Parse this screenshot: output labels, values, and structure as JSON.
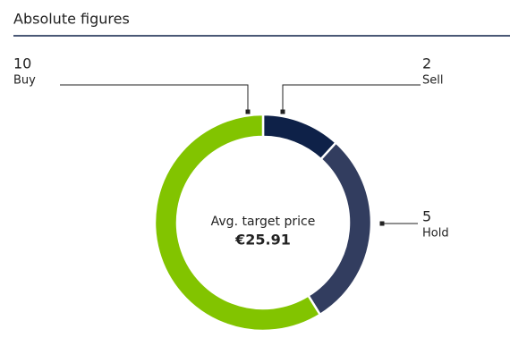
{
  "chart_data": {
    "type": "donut",
    "title": "Absolute figures",
    "categories": [
      "Sell",
      "Hold",
      "Buy"
    ],
    "values": [
      2,
      5,
      10
    ],
    "colors": [
      "#0e2148",
      "#323d5f",
      "#82c400"
    ],
    "center_text": [
      "Avg. target price",
      "€25.91"
    ]
  }
}
